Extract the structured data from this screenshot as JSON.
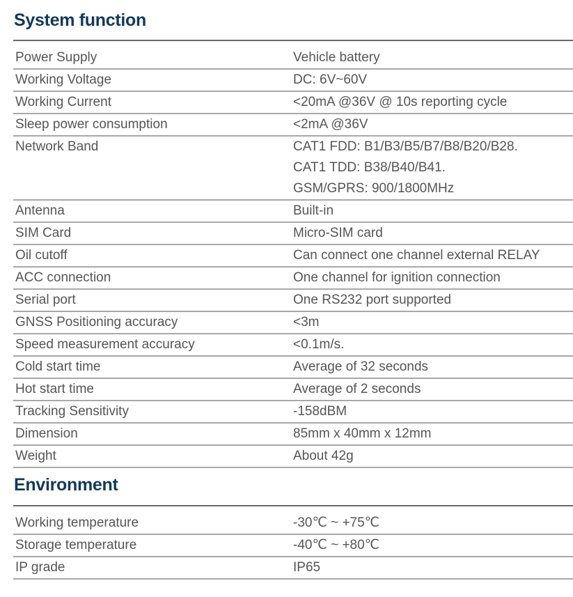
{
  "system": {
    "title": "System function",
    "rows": [
      {
        "label": "Power Supply",
        "values": [
          "Vehicle battery"
        ]
      },
      {
        "label": "Working Voltage",
        "values": [
          "DC: 6V~60V"
        ]
      },
      {
        "label": "Working Current",
        "values": [
          "<20mA @36V @ 10s reporting cycle"
        ]
      },
      {
        "label": "Sleep power consumption",
        "values": [
          "<2mA @36V"
        ]
      },
      {
        "label": "Network Band",
        "values": [
          "CAT1 FDD: B1/B3/B5/B7/B8/B20/B28.",
          "CAT1 TDD: B38/B40/B41.",
          "GSM/GPRS: 900/1800MHz"
        ]
      },
      {
        "label": "Antenna",
        "values": [
          "Built-in"
        ]
      },
      {
        "label": "SIM Card",
        "values": [
          "Micro-SIM card"
        ]
      },
      {
        "label": "Oil cutoff",
        "values": [
          "Can connect one channel external RELAY"
        ]
      },
      {
        "label": "ACC connection",
        "values": [
          "One channel for ignition connection"
        ]
      },
      {
        "label": "Serial port",
        "values": [
          "One RS232 port supported"
        ]
      },
      {
        "label": "GNSS Positioning accuracy",
        "values": [
          "<3m"
        ]
      },
      {
        "label": "Speed measurement accuracy",
        "values": [
          "<0.1m/s."
        ]
      },
      {
        "label": "Cold start time",
        "values": [
          "Average of 32 seconds"
        ]
      },
      {
        "label": "Hot start time",
        "values": [
          "Average of 2 seconds"
        ]
      },
      {
        "label": "Tracking Sensitivity",
        "values": [
          "-158dBM"
        ]
      },
      {
        "label": "Dimension",
        "values": [
          "85mm x 40mm x 12mm"
        ]
      },
      {
        "label": "Weight",
        "values": [
          "About 42g"
        ]
      }
    ]
  },
  "environment": {
    "title": "Environment",
    "rows": [
      {
        "label": "Working temperature",
        "values": [
          "-30℃ ~ +75℃"
        ]
      },
      {
        "label": "Storage temperature",
        "values": [
          "-40℃ ~ +80℃"
        ]
      },
      {
        "label": "IP grade",
        "values": [
          "IP65"
        ]
      }
    ]
  }
}
